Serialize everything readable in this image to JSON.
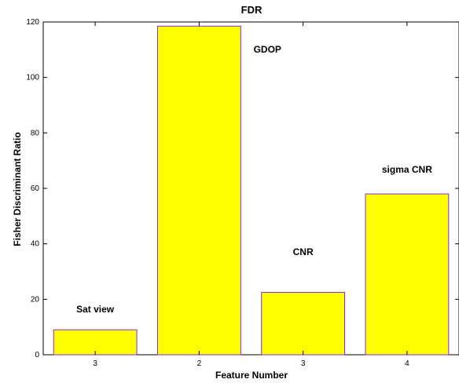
{
  "chart_data": {
    "type": "bar",
    "title": "FDR",
    "xlabel": "Feature Number",
    "ylabel": "Fisher Discriminant Ratio",
    "categories": [
      "3",
      "2",
      "3",
      "4"
    ],
    "values": [
      9,
      118.5,
      22.5,
      58
    ],
    "annotations": [
      "Sat view",
      "GDOP",
      "CNR",
      "sigma CNR"
    ],
    "ylim": [
      0,
      120
    ],
    "yticks": [
      0,
      20,
      40,
      60,
      80,
      100,
      120
    ],
    "grid": false,
    "colors": {
      "bar_fill": "#ffff00",
      "bar_edge": "#8a2be2",
      "axis": "#000000"
    }
  }
}
